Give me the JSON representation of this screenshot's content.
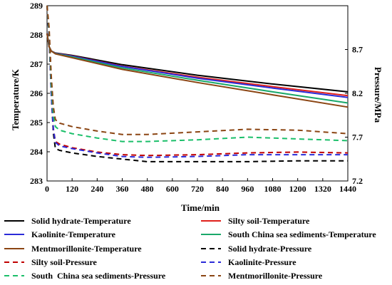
{
  "chart_data": {
    "type": "line",
    "title": "",
    "xlabel": "Time/min",
    "ylabel_left": "Temperature/K",
    "ylabel_right": "Pressure/MPa",
    "xlim": [
      0,
      1440
    ],
    "ylim_left": [
      283,
      289
    ],
    "ylim_right": [
      7.2,
      9.2
    ],
    "x_ticks": [
      0,
      120,
      240,
      360,
      480,
      600,
      720,
      840,
      960,
      1080,
      1200,
      1320,
      1440
    ],
    "y_left_ticks": [
      283,
      284,
      285,
      286,
      287,
      288,
      289
    ],
    "y_right_ticks": [
      7.2,
      7.7,
      8.2,
      8.7
    ],
    "grid": false,
    "legend_position": "bottom",
    "series": [
      {
        "name": "Solid hydrate-Temperature",
        "axis": "left",
        "color": "#000000",
        "dash": "solid",
        "x": [
          0,
          10,
          20,
          40,
          120,
          360,
          720,
          1080,
          1440
        ],
        "y": [
          288.05,
          287.6,
          287.45,
          287.38,
          287.3,
          286.98,
          286.62,
          286.32,
          286.05
        ]
      },
      {
        "name": "Silty soil-Temperature",
        "axis": "left",
        "color": "#e0201b",
        "dash": "solid",
        "x": [
          0,
          10,
          20,
          40,
          120,
          360,
          720,
          1080,
          1440
        ],
        "y": [
          288.05,
          287.6,
          287.45,
          287.37,
          287.28,
          286.93,
          286.55,
          286.23,
          285.92
        ]
      },
      {
        "name": "Kaolinite-Temperature",
        "axis": "left",
        "color": "#2b2bd8",
        "dash": "solid",
        "x": [
          0,
          10,
          20,
          40,
          120,
          360,
          720,
          1080,
          1440
        ],
        "y": [
          288.05,
          287.6,
          287.45,
          287.37,
          287.27,
          286.92,
          286.52,
          286.18,
          285.86
        ]
      },
      {
        "name": "South China sea sediments-Temperature",
        "axis": "left",
        "color": "#1aa86a",
        "dash": "solid",
        "x": [
          0,
          10,
          20,
          40,
          120,
          360,
          720,
          1080,
          1440
        ],
        "y": [
          288.05,
          287.6,
          287.45,
          287.36,
          287.25,
          286.87,
          286.45,
          286.05,
          285.67
        ]
      },
      {
        "name": "Mentmorillonite-Temperature",
        "axis": "left",
        "color": "#8b4513",
        "dash": "solid",
        "x": [
          0,
          10,
          20,
          40,
          120,
          360,
          720,
          1080,
          1440
        ],
        "y": [
          288.05,
          287.6,
          287.45,
          287.35,
          287.22,
          286.82,
          286.37,
          285.95,
          285.53
        ]
      },
      {
        "name": "Solid hydrate-Pressure",
        "axis": "right",
        "color": "#000000",
        "dash": "dashed",
        "x": [
          0,
          10,
          20,
          30,
          40,
          60,
          120,
          240,
          360,
          480,
          720,
          960,
          1200,
          1440
        ],
        "y": [
          9.2,
          8.85,
          8.2,
          7.75,
          7.57,
          7.55,
          7.52,
          7.48,
          7.45,
          7.42,
          7.42,
          7.42,
          7.43,
          7.43
        ]
      },
      {
        "name": "Silty soil-Pressure",
        "axis": "right",
        "color": "#c00000",
        "dash": "dashed",
        "x": [
          0,
          10,
          20,
          30,
          40,
          60,
          120,
          240,
          360,
          480,
          720,
          960,
          1200,
          1440
        ],
        "y": [
          9.2,
          8.85,
          8.2,
          7.8,
          7.65,
          7.62,
          7.58,
          7.53,
          7.5,
          7.49,
          7.5,
          7.52,
          7.53,
          7.52
        ]
      },
      {
        "name": "Kaolinite-Pressure",
        "axis": "right",
        "color": "#2b2bd8",
        "dash": "dashed",
        "x": [
          0,
          10,
          20,
          30,
          40,
          60,
          120,
          240,
          360,
          480,
          720,
          960,
          1200,
          1440
        ],
        "y": [
          9.2,
          8.85,
          8.2,
          7.8,
          7.64,
          7.6,
          7.57,
          7.52,
          7.48,
          7.47,
          7.48,
          7.5,
          7.5,
          7.5
        ]
      },
      {
        "name": "South  China sea sediments-Pressure",
        "axis": "right",
        "color": "#1bbf6a",
        "dash": "dashed",
        "x": [
          0,
          10,
          20,
          30,
          40,
          60,
          120,
          240,
          360,
          480,
          720,
          960,
          1200,
          1440
        ],
        "y": [
          9.2,
          8.9,
          8.3,
          7.95,
          7.82,
          7.78,
          7.74,
          7.69,
          7.65,
          7.65,
          7.67,
          7.7,
          7.68,
          7.66
        ]
      },
      {
        "name": "Mentmorillonite-Pressure",
        "axis": "right",
        "color": "#8b4513",
        "dash": "dashed",
        "x": [
          0,
          10,
          20,
          30,
          40,
          60,
          120,
          240,
          360,
          480,
          720,
          960,
          1200,
          1440
        ],
        "y": [
          9.2,
          8.95,
          8.4,
          8.05,
          7.9,
          7.86,
          7.82,
          7.77,
          7.73,
          7.73,
          7.76,
          7.79,
          7.78,
          7.74
        ]
      }
    ]
  }
}
